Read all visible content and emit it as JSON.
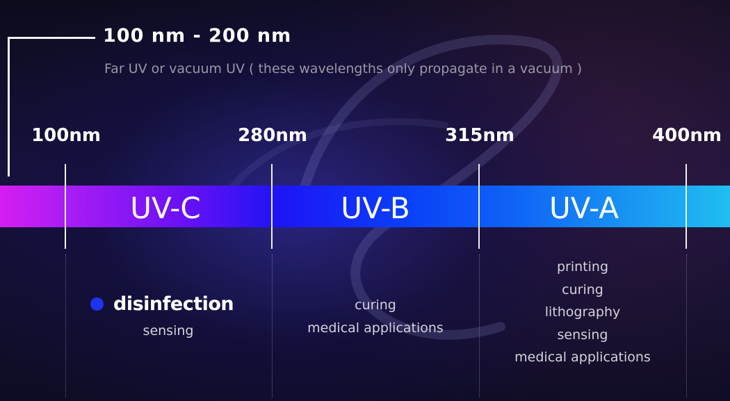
{
  "range": {
    "title": "100 nm - 200 nm",
    "description": "Far UV or vacuum UV ( these wavelengths only propagate in a vacuum )"
  },
  "wavelengths": [
    "100nm",
    "280nm",
    "315nm",
    "400nm"
  ],
  "bands": [
    {
      "label": "UV-C"
    },
    {
      "label": "UV-B"
    },
    {
      "label": "UV-A"
    }
  ],
  "applications": {
    "uvc": {
      "highlight": "disinfection",
      "items": [
        "sensing"
      ]
    },
    "uvb": {
      "items": [
        "curing",
        "medical applications"
      ]
    },
    "uva": {
      "items": [
        "printing",
        "curing",
        "lithography",
        "sensing",
        "medical applications"
      ]
    }
  },
  "colors": {
    "bullet": "#1f34f0",
    "band_start": "#d41ef0",
    "band_end": "#1fbef0"
  }
}
